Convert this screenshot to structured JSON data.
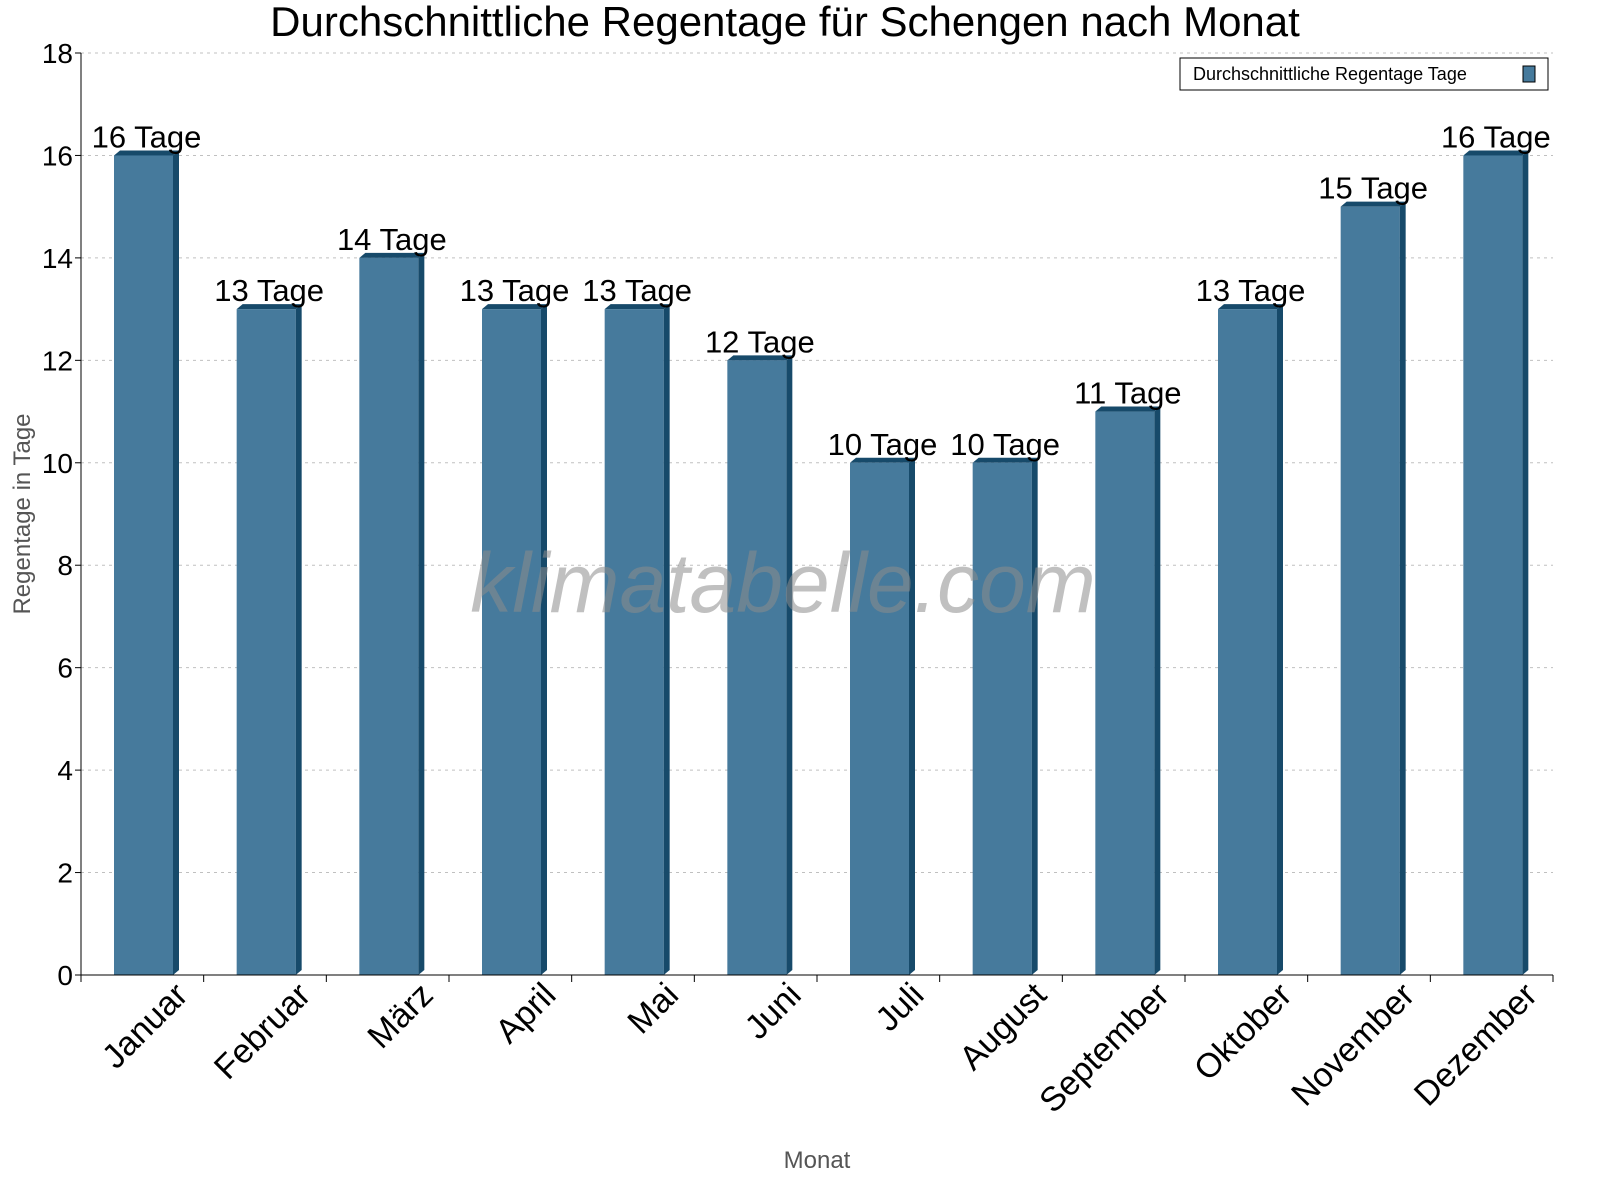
{
  "chart_data": {
    "type": "bar",
    "title": "Durchschnittliche Regentage für Schengen nach Monat",
    "xlabel": "Monat",
    "ylabel": "Regentage in Tage",
    "ylim": [
      0,
      18
    ],
    "yticks": [
      0,
      2,
      4,
      6,
      8,
      10,
      12,
      14,
      16,
      18
    ],
    "grid": true,
    "legend_position": "top-right",
    "categories": [
      "Januar",
      "Februar",
      "März",
      "April",
      "Mai",
      "Juni",
      "Juli",
      "August",
      "September",
      "Oktober",
      "November",
      "Dezember"
    ],
    "series": [
      {
        "name": "Durchschnittliche Regentage Tage",
        "values": [
          16,
          13,
          14,
          13,
          13,
          12,
          10,
          10,
          11,
          13,
          15,
          16
        ],
        "labels": [
          "16 Tage",
          "13 Tage",
          "14 Tage",
          "13 Tage",
          "13 Tage",
          "12 Tage",
          "10 Tage",
          "10 Tage",
          "11 Tage",
          "13 Tage",
          "15 Tage",
          "16 Tage"
        ]
      }
    ],
    "colors": {
      "bar_front": "#467a9c",
      "bar_side": "#174a6a",
      "grid": "#c0c0c0",
      "watermark": "#8c8c8c"
    },
    "watermark": "klimatabelle.com"
  }
}
